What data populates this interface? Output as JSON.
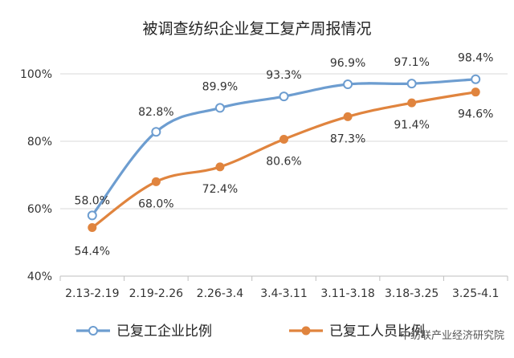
{
  "chart_data": {
    "type": "line",
    "title": "被调查纺织企业复工复产周报情况",
    "categories": [
      "2.13-2.19",
      "2.19-2.26",
      "2.26-3.4",
      "3.4-3.11",
      "3.11-3.18",
      "3.18-3.25",
      "3.25-4.1"
    ],
    "series": [
      {
        "name": "已复工企业比例",
        "color": "#6d9dd0",
        "marker": "hollow-circle",
        "values": [
          58.0,
          82.8,
          89.9,
          93.3,
          96.9,
          97.1,
          98.4
        ],
        "labels": [
          "58.0%",
          "82.8%",
          "89.9%",
          "93.3%",
          "96.9%",
          "97.1%",
          "98.4%"
        ]
      },
      {
        "name": "已复工人员比例",
        "color": "#e0843e",
        "marker": "filled-circle",
        "values": [
          54.4,
          68.0,
          72.4,
          80.6,
          87.3,
          91.4,
          94.6
        ],
        "labels": [
          "54.4%",
          "68.0%",
          "72.4%",
          "80.6%",
          "87.3%",
          "91.4%",
          "94.6%"
        ]
      }
    ],
    "ylim": [
      40,
      100
    ],
    "yticks": [
      "40%",
      "60%",
      "80%",
      "100%"
    ],
    "grid": true,
    "legend_position": "bottom"
  },
  "watermark": "中纺联产业经济研究院"
}
